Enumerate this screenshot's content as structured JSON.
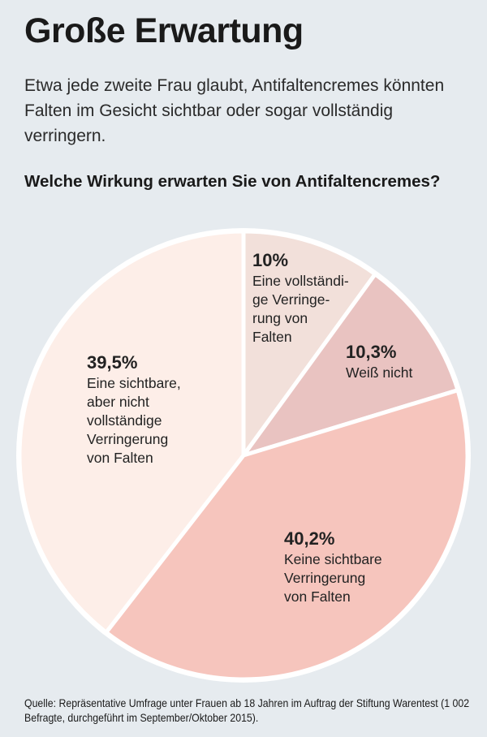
{
  "title": "Große Erwartung",
  "intro": "Etwa jede zweite Frau glaubt, Antifaltencremes könnten Falten im Gesicht sichtbar oder sogar vollständig verringern.",
  "question": "Welche Wirkung erwarten Sie von Antifalten­cremes?",
  "source": "Quelle: Repräsentative Umfrage unter Frauen ab 18 Jahren im Auftrag der Stiftung Warentest (1 002 Befragte, durchgeführt im September/Oktober 2015).",
  "chart_data": {
    "type": "pie",
    "title": "Welche Wirkung erwarten Sie von Antifaltencremes?",
    "slices": [
      {
        "label_pct": "10%",
        "value": 10,
        "label": "Eine vollständige Verringerung von Falten",
        "label_lines": "Eine vollständi-\nge Verringe-\nrung von\nFalten",
        "color": "#f2e0da"
      },
      {
        "label_pct": "10,3%",
        "value": 10.3,
        "label": "Weiß nicht",
        "label_lines": "Weiß nicht",
        "color": "#e9c3c1"
      },
      {
        "label_pct": "40,2%",
        "value": 40.2,
        "label": "Keine sichtbare Verringerung von Falten",
        "label_lines": "Keine sichtbare\nVerringerung\nvon Falten",
        "color": "#f6c5bd"
      },
      {
        "label_pct": "39,5%",
        "value": 39.5,
        "label": "Eine sichtbare, aber nicht vollständige Verringerung von Falten",
        "label_lines": "Eine sichtbare,\naber nicht\nvollständige\nVerringerung\nvon Falten",
        "color": "#fdeee8"
      }
    ],
    "start": "top, clockwise"
  }
}
